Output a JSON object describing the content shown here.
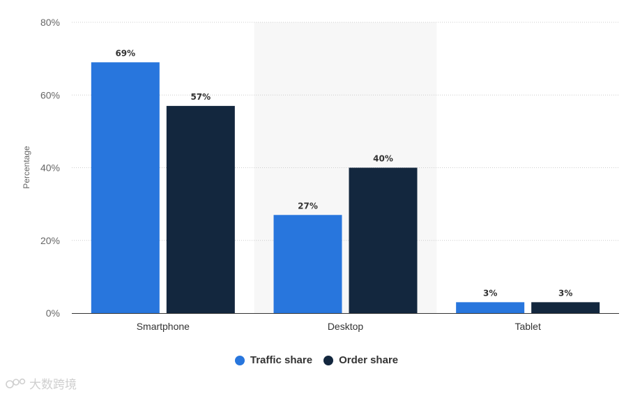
{
  "chart_data": {
    "type": "bar",
    "title": "",
    "xlabel": "",
    "ylabel": "Percentage",
    "ylim": [
      0,
      80
    ],
    "yticks": [
      0,
      20,
      40,
      60,
      80
    ],
    "ytick_suffix": "%",
    "categories": [
      "Smartphone",
      "Desktop",
      "Tablet"
    ],
    "series": [
      {
        "name": "Traffic share",
        "color": "#2876dd",
        "values": [
          69,
          27,
          3
        ],
        "labels": [
          "69%",
          "27%",
          "3%"
        ]
      },
      {
        "name": "Order share",
        "color": "#13273e",
        "values": [
          57,
          40,
          3
        ],
        "labels": [
          "57%",
          "40%",
          "3%"
        ]
      }
    ],
    "highlighted_category": "Desktop",
    "grid": true,
    "legend_position": "bottom-center"
  },
  "watermark": {
    "text": "大数跨境",
    "icon": "logo-icon"
  }
}
